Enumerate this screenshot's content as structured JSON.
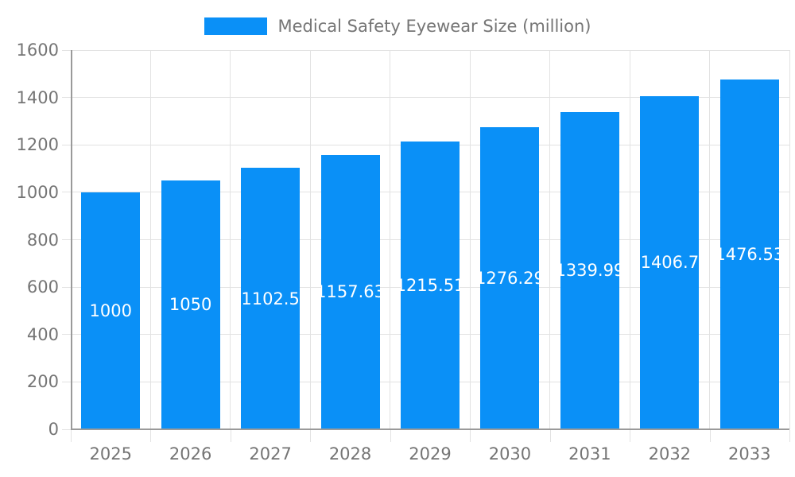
{
  "legend": {
    "label": "Medical Safety Eyewear Size (million)"
  },
  "chart_data": {
    "type": "bar",
    "title": "Medical Safety Eyewear Size (million)",
    "categories": [
      "2025",
      "2026",
      "2027",
      "2028",
      "2029",
      "2030",
      "2031",
      "2032",
      "2033"
    ],
    "series": [
      {
        "name": "Medical Safety Eyewear Size (million)",
        "values": [
          1000,
          1050,
          1102.5,
          1157.63,
          1215.51,
          1276.29,
          1339.99,
          1406.7,
          1476.53
        ]
      }
    ],
    "bar_labels": [
      "1000",
      "1050",
      "1102.5",
      "1157.63",
      "1215.51",
      "1276.29",
      "1339.99",
      "1406.7",
      "1476.53"
    ],
    "xlabel": "",
    "ylabel": "",
    "ylim": [
      0,
      1600
    ],
    "yticks": [
      0,
      200,
      400,
      600,
      800,
      1000,
      1200,
      1400,
      1600
    ],
    "grid": true,
    "legend_position": "top-center",
    "colors": {
      "bar": "#0A90F7",
      "grid": "#e2e2e2",
      "axis": "#9a9a9a",
      "tick_text": "#757575",
      "legend_text": "#757575",
      "bar_label_text": "#ffffff",
      "background": "#ffffff"
    }
  }
}
